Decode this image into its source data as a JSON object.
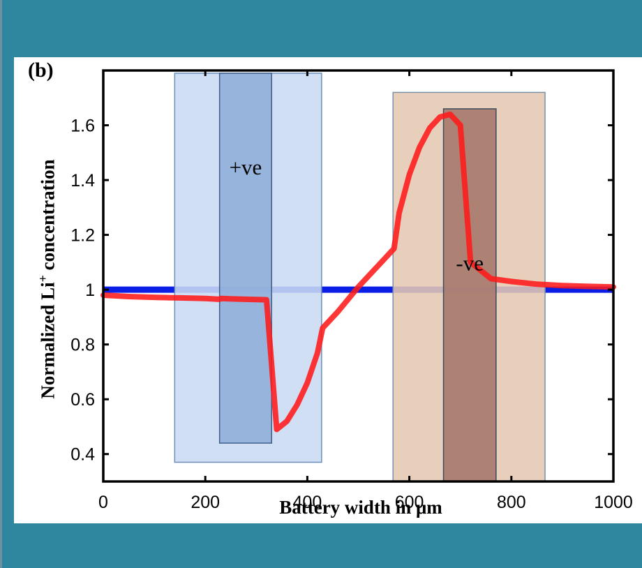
{
  "chart_data": {
    "type": "line",
    "panel_label": "(b)",
    "xlabel": "Battery width in μm",
    "ylabel_prefix": "Normalized Li",
    "ylabel_sup": "+",
    "ylabel_suffix": " concentration",
    "xlim": [
      0,
      1000
    ],
    "ylim": [
      0.3,
      1.8
    ],
    "xticks": [
      0,
      200,
      400,
      600,
      800,
      1000
    ],
    "yticks": [
      0.4,
      0.6,
      0.8,
      1,
      1.2,
      1.4,
      1.6
    ],
    "grid": false,
    "series": [
      {
        "color": "#ff1a1a",
        "x": [
          0,
          50,
          100,
          150,
          200,
          228,
          230,
          260,
          300,
          320,
          340,
          360,
          380,
          400,
          420,
          430,
          460,
          500,
          540,
          570,
          580,
          600,
          620,
          640,
          660,
          680,
          700,
          720,
          760,
          780,
          800,
          850,
          900,
          950,
          1000
        ],
        "y": [
          0.98,
          0.975,
          0.972,
          0.97,
          0.968,
          0.965,
          0.968,
          0.966,
          0.964,
          0.963,
          0.49,
          0.52,
          0.58,
          0.66,
          0.77,
          0.86,
          0.92,
          1.01,
          1.09,
          1.15,
          1.28,
          1.42,
          1.52,
          1.59,
          1.63,
          1.64,
          1.6,
          1.1,
          1.04,
          1.035,
          1.03,
          1.02,
          1.015,
          1.012,
          1.01
        ]
      },
      {
        "color": "#0a1ee6",
        "x": [
          0,
          1000
        ],
        "y": [
          1.0,
          1.0
        ]
      }
    ],
    "regions": [
      {
        "name": "positive-separator-region",
        "x": [
          140,
          428
        ],
        "y": [
          0.37,
          1.79
        ],
        "fill": "#c9dbf1",
        "stroke": "#6b8fb8"
      },
      {
        "name": "positive-electrode",
        "x": [
          228,
          330
        ],
        "y": [
          0.44,
          1.79
        ],
        "fill": "#8eaed8",
        "stroke": "#3f5f88",
        "label": "+ve",
        "label_y": 1.42
      },
      {
        "name": "negative-separator-region",
        "x": [
          568,
          866
        ],
        "y": [
          0.3,
          1.72
        ],
        "fill": "#e4c8b3",
        "stroke": "#7a8fa8"
      },
      {
        "name": "negative-electrode",
        "x": [
          667,
          770
        ],
        "y": [
          0.3,
          1.66
        ],
        "fill": "#a5786b",
        "stroke": "#3a4a5a",
        "label": "-ve",
        "label_y": 1.07
      }
    ]
  }
}
